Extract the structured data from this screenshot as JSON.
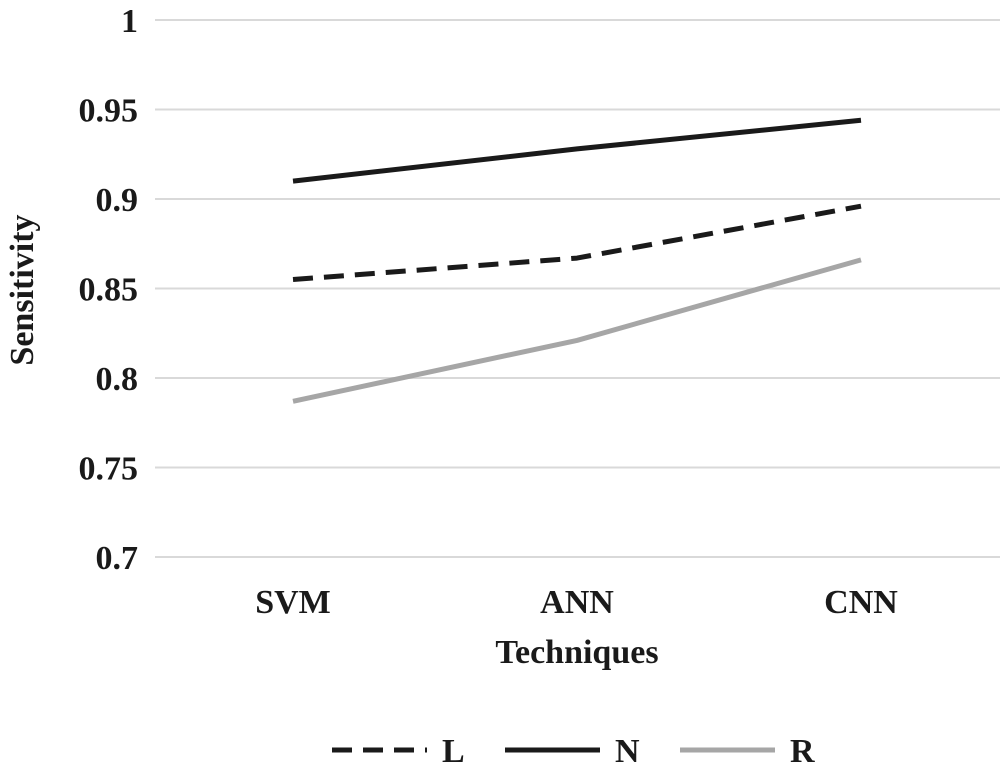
{
  "chart_data": {
    "type": "line",
    "title": "",
    "xlabel": "Techniques",
    "ylabel": "Sensitivity",
    "categories": [
      "SVM",
      "ANN",
      "CNN"
    ],
    "yticks": [
      "0.7",
      "0.75",
      "0.8",
      "0.85",
      "0.9",
      "0.95",
      "1"
    ],
    "ylim": [
      0.7,
      1.0
    ],
    "grid": true,
    "legend_position": "bottom",
    "series": [
      {
        "name": "L",
        "values": [
          0.855,
          0.867,
          0.896
        ],
        "color": "#1a1a1a",
        "dash": "dashed"
      },
      {
        "name": "N",
        "values": [
          0.91,
          0.928,
          0.944
        ],
        "color": "#1a1a1a",
        "dash": "solid"
      },
      {
        "name": "R",
        "values": [
          0.787,
          0.821,
          0.866
        ],
        "color": "#a6a6a6",
        "dash": "solid"
      }
    ]
  }
}
